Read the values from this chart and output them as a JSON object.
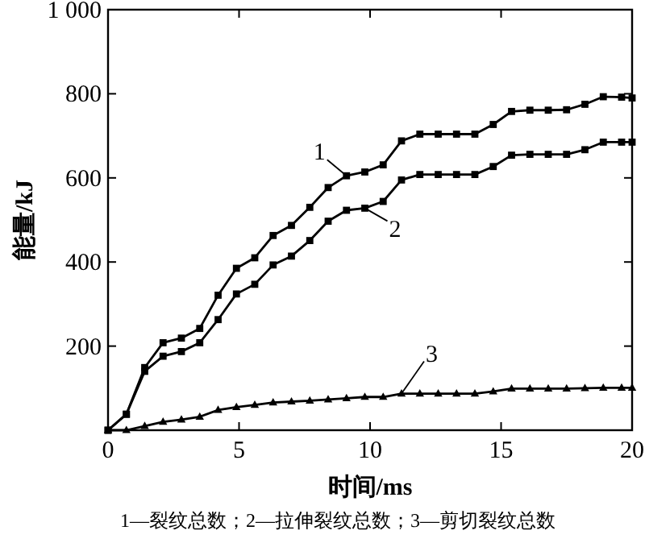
{
  "chart_data": {
    "type": "line",
    "xlabel": "时间/ms",
    "ylabel": "能量/kJ",
    "x": [
      0,
      0.7,
      1.4,
      2.1,
      2.8,
      3.5,
      4.2,
      4.9,
      5.6,
      6.3,
      7.0,
      7.7,
      8.4,
      9.1,
      9.8,
      10.5,
      11.2,
      11.9,
      12.6,
      13.3,
      14.0,
      14.7,
      15.4,
      16.1,
      16.8,
      17.5,
      18.2,
      18.9,
      19.6,
      20
    ],
    "series": [
      {
        "color": "#000000",
        "marker": "square",
        "values": [
          0,
          38,
          149,
          208,
          219,
          242,
          321,
          385,
          410,
          463,
          487,
          530,
          577,
          605,
          614,
          631,
          688,
          704,
          704,
          704,
          704,
          727,
          758,
          761,
          761,
          762,
          775,
          793,
          792,
          790
        ]
      },
      {
        "color": "#000000",
        "marker": "square",
        "values": [
          0,
          38,
          140,
          176,
          187,
          208,
          263,
          324,
          347,
          393,
          414,
          451,
          497,
          523,
          528,
          544,
          595,
          608,
          608,
          608,
          608,
          627,
          654,
          656,
          656,
          656,
          667,
          685,
          685,
          685
        ]
      },
      {
        "color": "#000000",
        "marker": "triangle",
        "values": [
          0,
          0,
          10,
          20,
          25,
          32,
          48,
          55,
          60,
          66,
          68,
          70,
          73,
          76,
          79,
          79,
          87,
          87,
          87,
          87,
          87,
          92,
          99,
          99,
          99,
          99,
          100,
          101,
          101,
          101
        ]
      }
    ],
    "xlim": [
      0,
      20
    ],
    "xticks": [
      0,
      5,
      10,
      15,
      20
    ],
    "ylim": [
      0,
      1000
    ],
    "yticks": [
      {
        "value": 0,
        "label": null
      },
      200,
      400,
      600,
      800,
      {
        "value": 1000,
        "label": "1 000"
      }
    ],
    "grid": false,
    "line_style": "solid",
    "annotations": [
      {
        "text": "1",
        "x": 9.1,
        "y": 605
      },
      {
        "text": "2",
        "x": 9.8,
        "y": 528
      },
      {
        "text": "3",
        "x": 11.2,
        "y": 87
      },
      "1—裂纹总数；2—拉伸裂纹总数；3—剪切裂纹总数"
    ]
  }
}
